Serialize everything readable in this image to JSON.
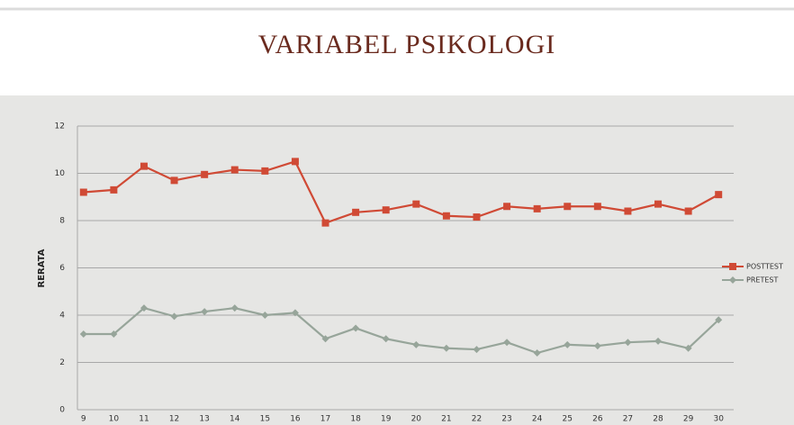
{
  "chart_data": {
    "type": "line",
    "title": "VARIABEL   PSIKOLOGI",
    "ylabel": "RERATA",
    "categories": [
      "9",
      "10",
      "11",
      "12",
      "13",
      "14",
      "15",
      "16",
      "17",
      "18",
      "19",
      "20",
      "21",
      "22",
      "23",
      "24",
      "25",
      "26",
      "27",
      "28",
      "29",
      "30"
    ],
    "series": [
      {
        "name": "POSTTEST",
        "color": "#d04a35",
        "marker": "square",
        "values": [
          9.2,
          9.3,
          10.3,
          9.7,
          9.95,
          10.15,
          10.1,
          10.5,
          7.9,
          8.35,
          8.45,
          8.7,
          8.2,
          8.15,
          8.6,
          8.5,
          8.6,
          8.6,
          8.4,
          8.7,
          8.4,
          9.1
        ]
      },
      {
        "name": "PRETEST",
        "color": "#97a59a",
        "marker": "diamond",
        "values": [
          3.2,
          3.2,
          4.3,
          3.95,
          4.15,
          4.3,
          4.0,
          4.1,
          3.0,
          3.45,
          3.0,
          2.75,
          2.6,
          2.55,
          2.85,
          2.4,
          2.75,
          2.7,
          2.85,
          2.9,
          2.6,
          3.8
        ]
      }
    ],
    "ylim": [
      0,
      12
    ],
    "yticks": [
      0,
      2,
      4,
      6,
      8,
      10,
      12
    ],
    "grid": true,
    "legend": "right"
  }
}
